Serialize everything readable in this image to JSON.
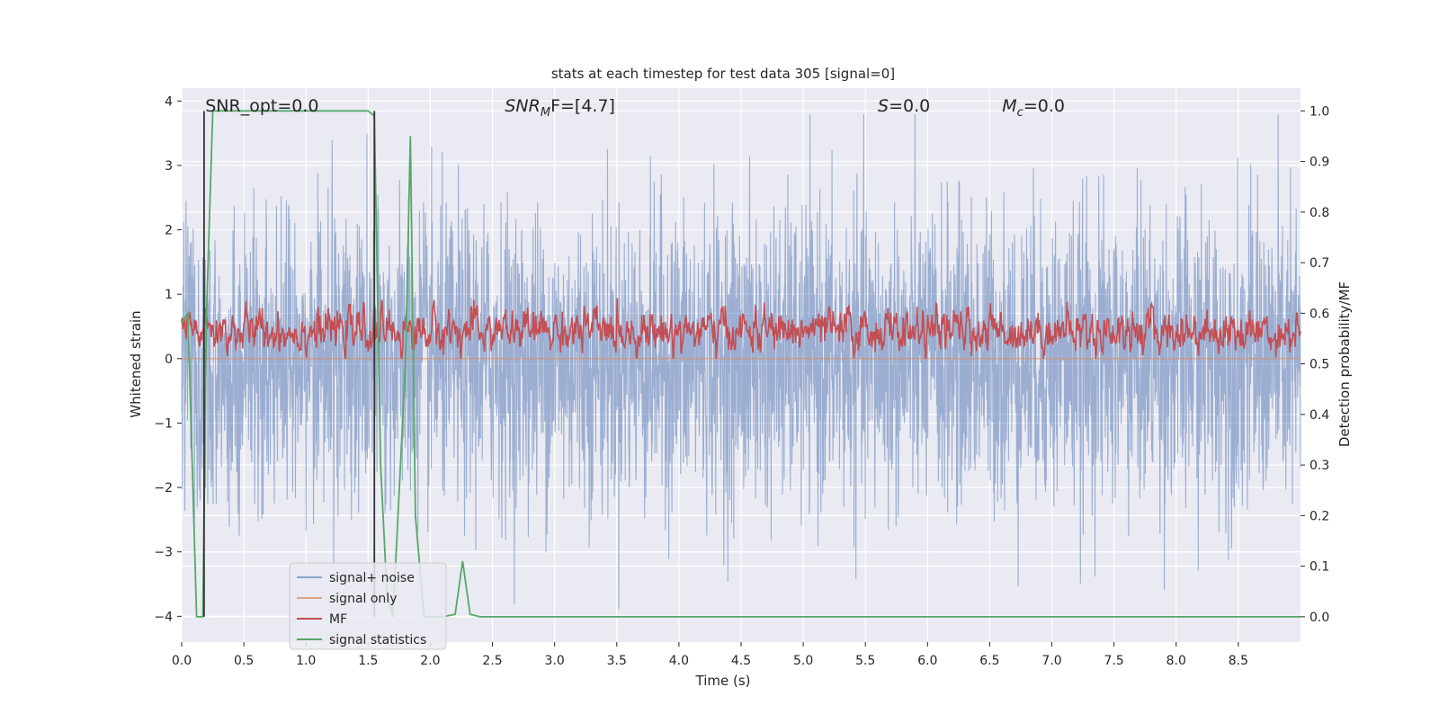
{
  "chart_data": {
    "type": "line",
    "title": "stats at each timestep for test data 305 [signal=0]",
    "xlabel": "Time (s)",
    "ylabel_left": "Whitened strain",
    "ylabel_right": "Detection probability/MF",
    "xlim": [
      0.0,
      9.0
    ],
    "ylim_left": [
      -4.4,
      4.2
    ],
    "ylim_right": [
      -0.05,
      1.045
    ],
    "x_ticks": [
      "0.0",
      "0.5",
      "1.0",
      "1.5",
      "2.0",
      "2.5",
      "3.0",
      "3.5",
      "4.0",
      "4.5",
      "5.0",
      "5.5",
      "6.0",
      "6.5",
      "7.0",
      "7.5",
      "8.0",
      "8.5"
    ],
    "y_ticks_left": [
      "4",
      "3",
      "2",
      "1",
      "0",
      "−1",
      "−2",
      "−3",
      "−4"
    ],
    "y_ticks_right": [
      "1.0",
      "0.9",
      "0.8",
      "0.7",
      "0.6",
      "0.5",
      "0.4",
      "0.3",
      "0.2",
      "0.1",
      "0.0"
    ],
    "grid": true,
    "annotations": [
      {
        "text": "SNR_opt=0.0",
        "x": 0.19,
        "y": 3.95
      },
      {
        "main": "SNR",
        "sub": "M",
        "tail": "F=[4.7]",
        "x": 2.6,
        "y": 3.95
      },
      {
        "main": "S",
        "sub": "",
        "tail": "=0.0",
        "x": 5.6,
        "y": 3.95
      },
      {
        "main": "M",
        "sub": "c",
        "tail": "=0.0",
        "x": 6.6,
        "y": 3.95
      }
    ],
    "colors": {
      "background": "#eaeaf2",
      "grid": "#ffffff",
      "signal_noise": "#4c72b0",
      "signal_only": "#dd8452",
      "mf": "#c44e52",
      "signal_statistics": "#55a868",
      "markers": "#333333"
    },
    "series": [
      {
        "name": "signal+ noise",
        "axis": "left",
        "description": "whitened strain noise, approx. range -4.0 to 3.8, dense"
      },
      {
        "name": "signal only",
        "axis": "left",
        "x": [
          0.0,
          9.0
        ],
        "y": [
          0.0,
          0.0
        ]
      },
      {
        "name": "MF",
        "axis": "right",
        "description": "matched-filter output, approx. range 0.51 to 0.63"
      },
      {
        "name": "signal statistics",
        "axis": "right",
        "x": [
          0.0,
          0.05,
          0.12,
          0.17,
          0.2,
          0.25,
          0.3,
          0.5,
          1.0,
          1.5,
          1.55,
          1.6,
          1.65,
          1.7,
          1.8,
          1.84,
          1.88,
          1.95,
          2.0,
          2.1,
          2.2,
          2.26,
          2.32,
          2.4,
          3.0,
          9.0
        ],
        "y": [
          0.58,
          0.6,
          0.0,
          0.0,
          0.6,
          1.0,
          1.0,
          1.0,
          1.0,
          1.0,
          0.99,
          0.3,
          0.05,
          0.0,
          0.5,
          0.95,
          0.2,
          0.0,
          0.0,
          0.0,
          0.005,
          0.11,
          0.005,
          0.0,
          0.0,
          0.0
        ]
      },
      {
        "name": "event markers",
        "axis": "right",
        "x": [
          0.18,
          1.55
        ],
        "y": [
          0.0,
          1.0
        ]
      }
    ],
    "legend": {
      "position": "lower-left",
      "entries": [
        "signal+ noise",
        "signal only",
        "MF",
        "signal statistics"
      ]
    }
  }
}
